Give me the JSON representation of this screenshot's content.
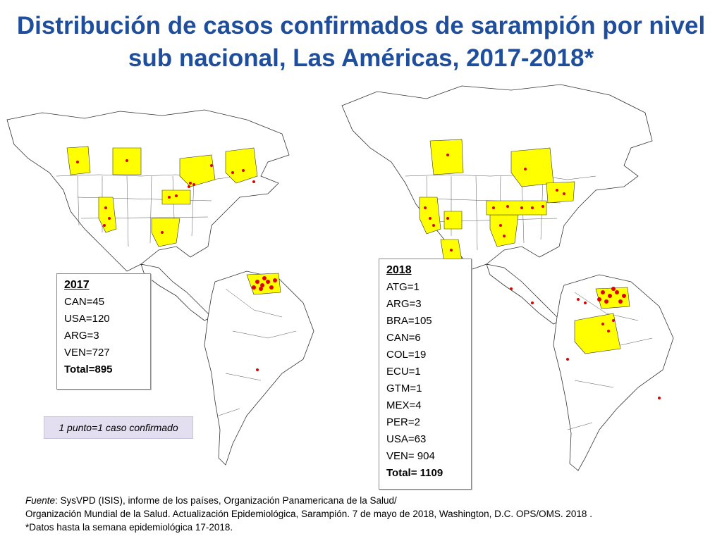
{
  "title": {
    "line1": "Distribución de casos confirmados de sarampión por nivel",
    "line2": "sub nacional, Las Américas, 2017-2018*"
  },
  "box_2017": {
    "year": "2017",
    "items": [
      "CAN=45",
      "USA=120",
      "ARG=3",
      "VEN=727"
    ],
    "total": "Total=895"
  },
  "box_2018": {
    "year": "2018",
    "items": [
      "ATG=1",
      "ARG=3",
      "BRA=105",
      "CAN=6",
      "COL=19",
      "ECU=1",
      "GTM=1",
      "MEX=4",
      "PER=2",
      "USA=63",
      "VEN= 904"
    ],
    "total": "Total= 1109"
  },
  "legend_note": "1 punto=1 caso confirmado",
  "source": {
    "label": "Fuente",
    "line1_rest": ": SysVPD (ISIS), informe de los países, Organización Panamericana de la Salud/",
    "line2": "Organización Mundial de la Salud. Actualización Epidemiológica, Sarampión. 7 de mayo de 2018, Washington, D.C. OPS/OMS. 2018 .",
    "line3": "*Datos hasta la semana epidemiológica 17-2018."
  },
  "colors": {
    "title": "#1f4e9c",
    "highlight_region": "#ffff00",
    "case_dot": "#e00000",
    "legend_bg": "#e4dff0"
  }
}
